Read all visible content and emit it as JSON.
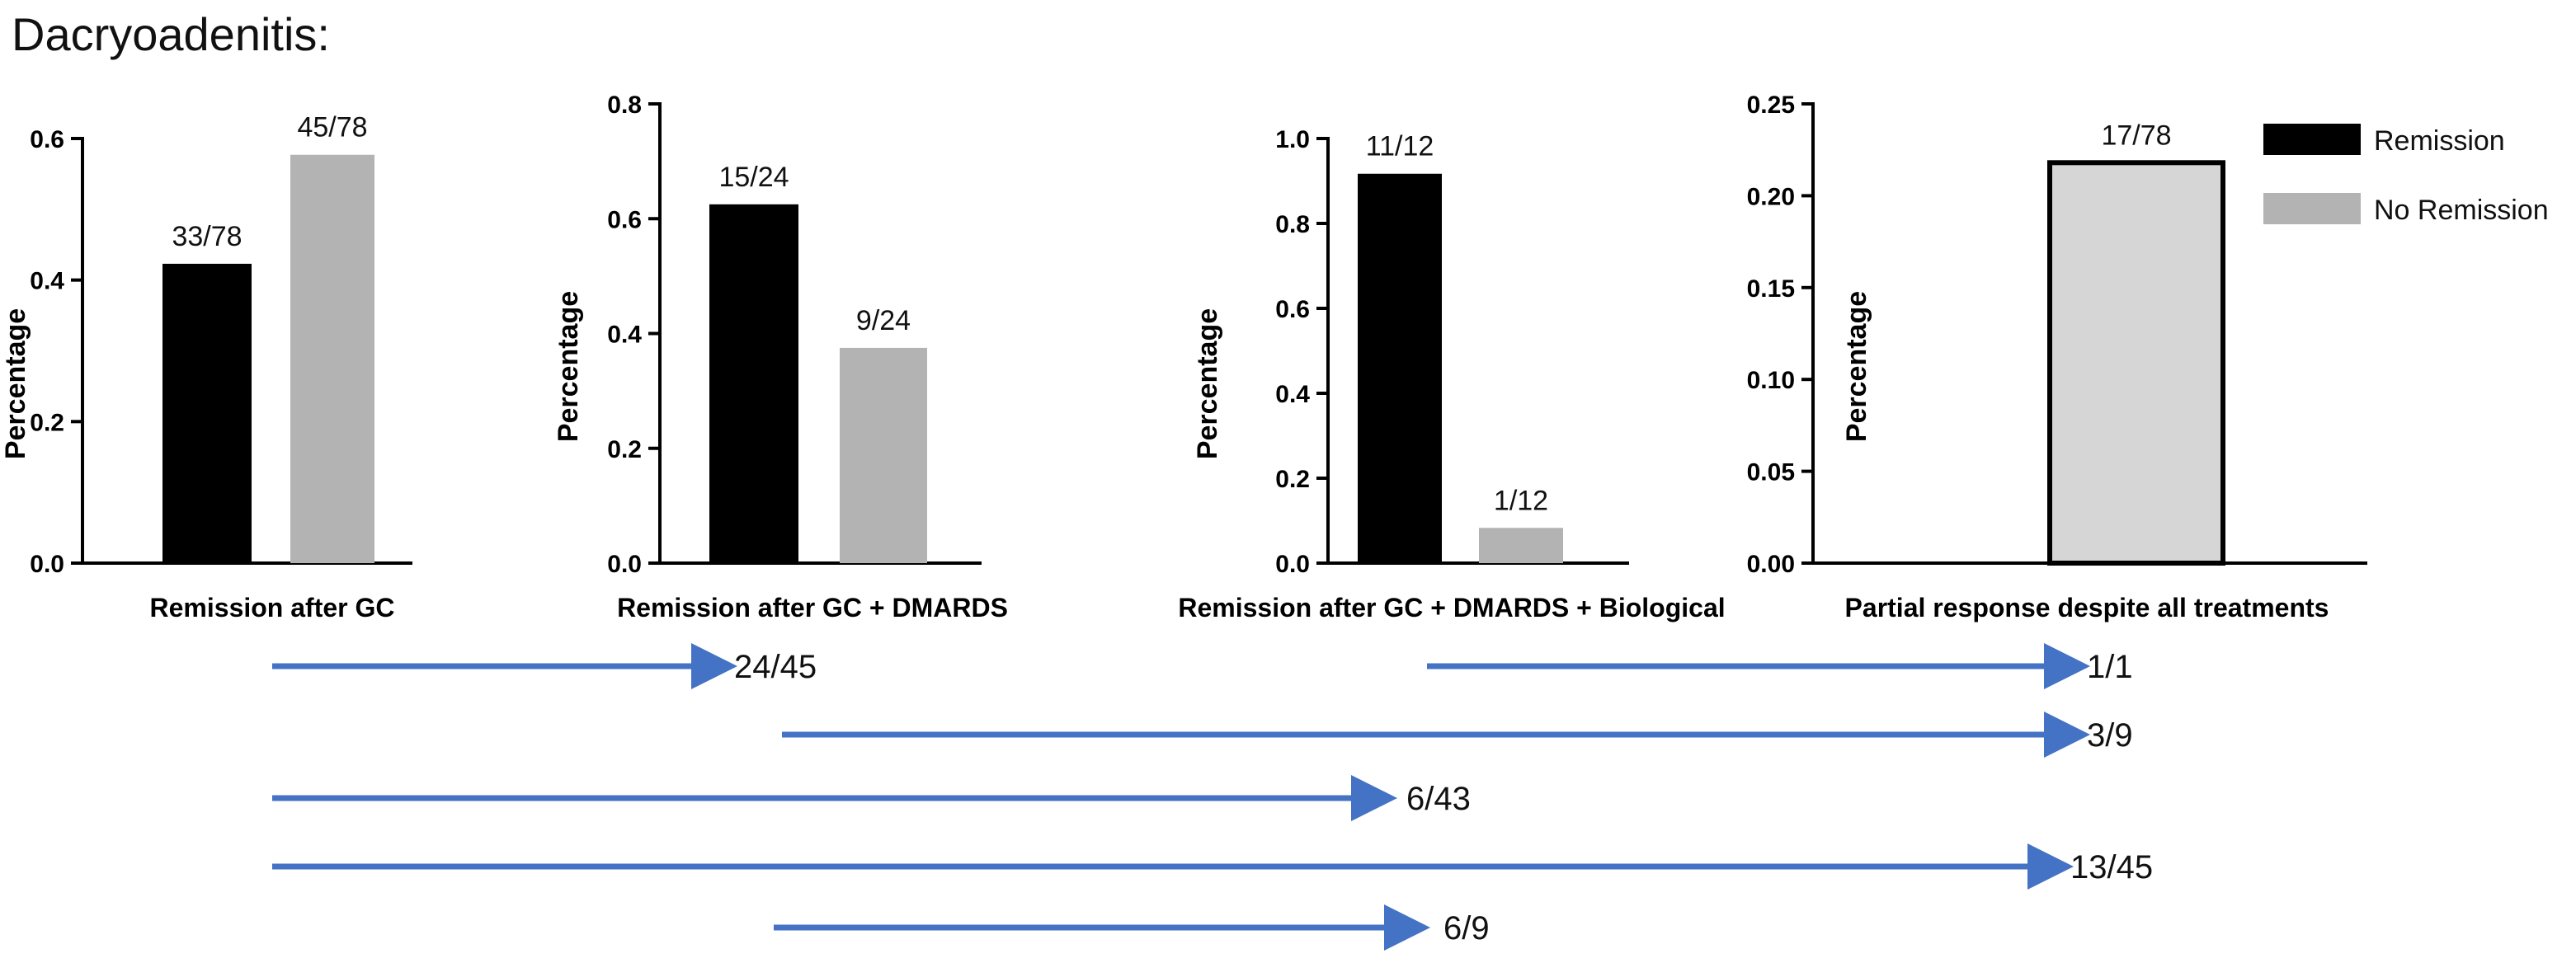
{
  "title": "Dacryoadenitis:",
  "colors": {
    "remission": "#000000",
    "no_remission": "#b3b3b3",
    "partial": "#d6d6d6",
    "arrow": "#4472c4"
  },
  "legend": [
    {
      "label": "Remission",
      "color": "#000000"
    },
    {
      "label": "No Remission",
      "color": "#b3b3b3"
    }
  ],
  "chart_data": [
    {
      "type": "bar",
      "xlabel": "Remission after GC",
      "ylabel": "Percentage",
      "ylim": [
        0,
        0.6
      ],
      "yticks": [
        "0.0",
        "0.2",
        "0.4",
        "0.6"
      ],
      "categories": [
        "Remission",
        "No Remission"
      ],
      "values": [
        0.423,
        0.577
      ],
      "data_labels": [
        "33/78",
        "45/78"
      ],
      "colors": [
        "#000000",
        "#b3b3b3"
      ]
    },
    {
      "type": "bar",
      "xlabel": "Remission after GC + DMARDS",
      "ylabel": "Percentage",
      "ylim": [
        0,
        0.8
      ],
      "yticks": [
        "0.0",
        "0.2",
        "0.4",
        "0.6",
        "0.8"
      ],
      "categories": [
        "Remission",
        "No Remission"
      ],
      "values": [
        0.625,
        0.375
      ],
      "data_labels": [
        "15/24",
        "9/24"
      ],
      "colors": [
        "#000000",
        "#b3b3b3"
      ]
    },
    {
      "type": "bar",
      "xlabel": "Remission after GC + DMARDS + Biological",
      "ylabel": "Percentage",
      "ylim": [
        0,
        1.0
      ],
      "yticks": [
        "0.0",
        "0.2",
        "0.4",
        "0.6",
        "0.8",
        "1.0"
      ],
      "categories": [
        "Remission",
        "No Remission"
      ],
      "values": [
        0.917,
        0.083
      ],
      "data_labels": [
        "11/12",
        "1/12"
      ],
      "colors": [
        "#000000",
        "#b3b3b3"
      ]
    },
    {
      "type": "bar",
      "xlabel": "Partial response despite all treatments",
      "ylabel": "Percentage",
      "ylim": [
        0,
        0.25
      ],
      "yticks": [
        "0.00",
        "0.05",
        "0.10",
        "0.15",
        "0.20",
        "0.25"
      ],
      "categories": [
        "Partial response"
      ],
      "values": [
        0.218
      ],
      "data_labels": [
        "17/78"
      ],
      "colors": [
        "#d6d6d6"
      ],
      "outlined": true
    }
  ],
  "flows": [
    {
      "from": "Remission after GC",
      "to": "Remission after GC + DMARDS",
      "label": "24/45"
    },
    {
      "from": "Remission after GC + DMARDS + Biological",
      "to": "Partial response despite all treatments",
      "label": "1/1"
    },
    {
      "from": "Remission after GC + DMARDS",
      "to": "Partial response despite all treatments",
      "label": "3/9"
    },
    {
      "from": "Remission after GC",
      "to": "Remission after GC + DMARDS + Biological",
      "label": "6/43"
    },
    {
      "from": "Remission after GC",
      "to": "Partial response despite all treatments",
      "label": "13/45"
    },
    {
      "from": "Remission after GC + DMARDS",
      "to": "Remission after GC + DMARDS + Biological",
      "label": "6/9"
    }
  ]
}
